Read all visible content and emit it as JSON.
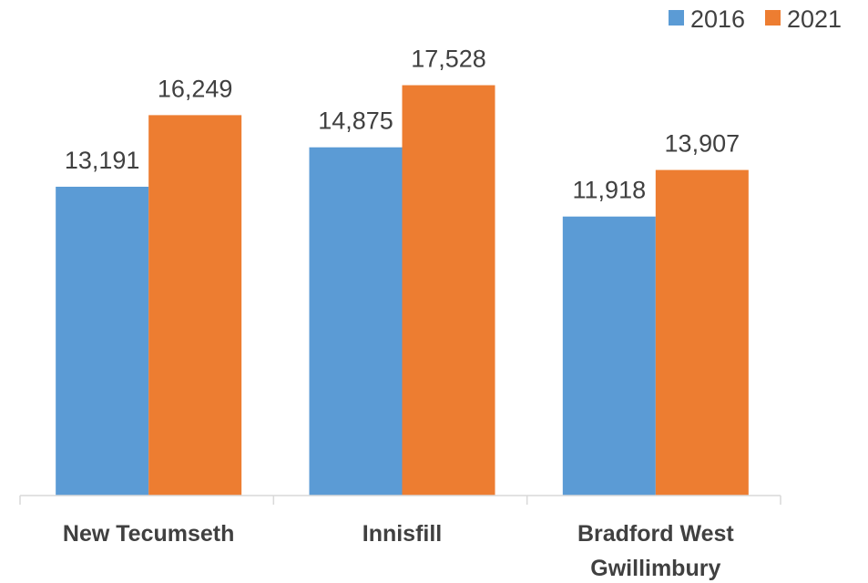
{
  "chart_data": {
    "type": "bar",
    "title": "",
    "xlabel": "",
    "ylabel": "",
    "categories": [
      [
        "New Tecumseth"
      ],
      [
        "Innisfill"
      ],
      [
        "Bradford West",
        "Gwillimbury"
      ]
    ],
    "series": [
      {
        "name": "2016",
        "color": "#5B9BD5",
        "values": [
          13191,
          14875,
          11918
        ]
      },
      {
        "name": "2021",
        "color": "#ED7D31",
        "values": [
          16249,
          17528,
          13907
        ]
      }
    ],
    "ylim": [
      0,
      20000
    ],
    "grid": false,
    "legend": "top-right",
    "data_labels": [
      [
        "13,191",
        "14,875",
        "11,918"
      ],
      [
        "16,249",
        "17,528",
        "13,907"
      ]
    ]
  }
}
